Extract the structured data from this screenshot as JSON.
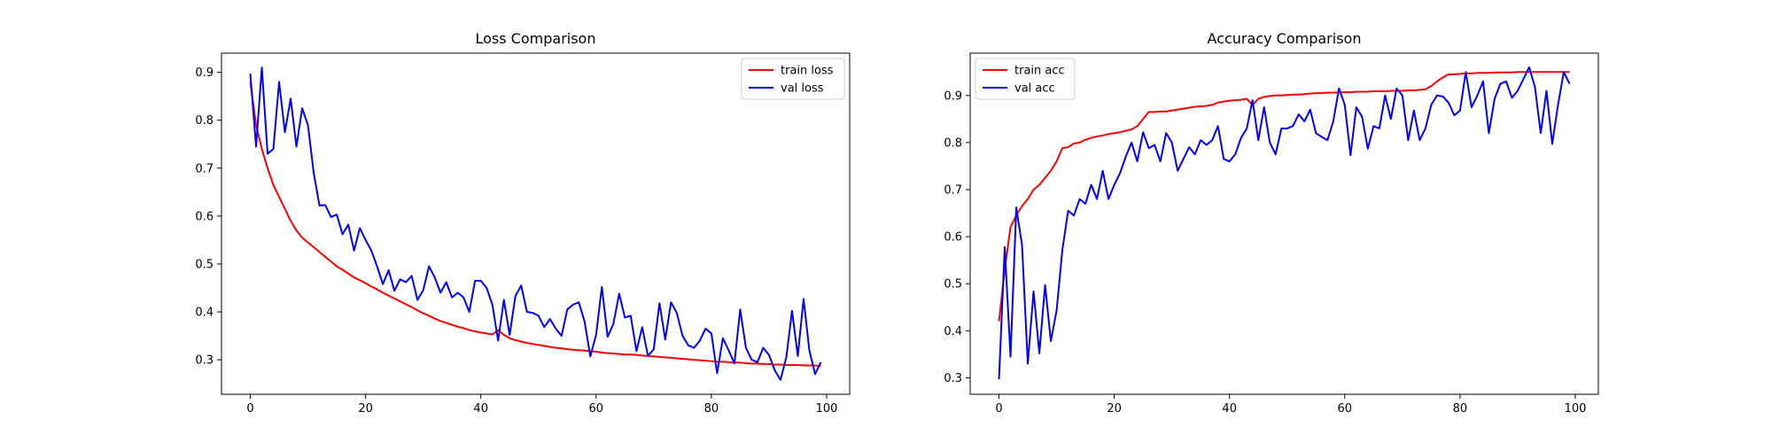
{
  "chart_data": [
    {
      "type": "line",
      "title": "Loss Comparison",
      "xlabel": "",
      "ylabel": "",
      "xlim": [
        -5,
        104
      ],
      "ylim": [
        0.228,
        0.94
      ],
      "x_ticks": [
        0,
        20,
        40,
        60,
        80,
        100
      ],
      "y_ticks": [
        0.3,
        0.4,
        0.5,
        0.6,
        0.7,
        0.8,
        0.9
      ],
      "y_tick_decimals": 1,
      "grid": false,
      "legend_position": "top-right",
      "series": [
        {
          "name": "train loss",
          "color": "#ff0000",
          "x": [
            0,
            1,
            2,
            3,
            4,
            5,
            6,
            7,
            8,
            9,
            10,
            11,
            12,
            13,
            14,
            15,
            16,
            17,
            18,
            19,
            20,
            21,
            22,
            23,
            24,
            25,
            26,
            27,
            28,
            29,
            30,
            31,
            32,
            33,
            34,
            35,
            36,
            37,
            38,
            39,
            40,
            41,
            42,
            43,
            44,
            45,
            46,
            47,
            48,
            49,
            50,
            51,
            52,
            53,
            54,
            55,
            56,
            57,
            58,
            59,
            60,
            61,
            62,
            63,
            64,
            65,
            66,
            67,
            68,
            69,
            70,
            71,
            72,
            73,
            74,
            75,
            76,
            77,
            78,
            79,
            80,
            81,
            82,
            83,
            84,
            85,
            86,
            87,
            88,
            89,
            90,
            91,
            92,
            93,
            94,
            95,
            96,
            97,
            98,
            99
          ],
          "values": [
            0.88,
            0.79,
            0.74,
            0.7,
            0.665,
            0.64,
            0.615,
            0.59,
            0.57,
            0.555,
            0.545,
            0.535,
            0.525,
            0.515,
            0.505,
            0.495,
            0.488,
            0.48,
            0.472,
            0.466,
            0.46,
            0.453,
            0.447,
            0.44,
            0.434,
            0.428,
            0.422,
            0.416,
            0.41,
            0.403,
            0.397,
            0.392,
            0.386,
            0.381,
            0.377,
            0.373,
            0.369,
            0.366,
            0.362,
            0.359,
            0.357,
            0.355,
            0.353,
            0.362,
            0.352,
            0.345,
            0.341,
            0.338,
            0.335,
            0.333,
            0.331,
            0.329,
            0.327,
            0.325,
            0.324,
            0.322,
            0.321,
            0.32,
            0.319,
            0.318,
            0.317,
            0.315,
            0.314,
            0.313,
            0.312,
            0.311,
            0.311,
            0.31,
            0.309,
            0.308,
            0.307,
            0.306,
            0.305,
            0.304,
            0.303,
            0.302,
            0.301,
            0.3,
            0.299,
            0.298,
            0.297,
            0.296,
            0.296,
            0.295,
            0.294,
            0.294,
            0.293,
            0.292,
            0.292,
            0.291,
            0.291,
            0.29,
            0.29,
            0.289,
            0.289,
            0.289,
            0.288,
            0.288,
            0.288,
            0.287
          ]
        },
        {
          "name": "val loss",
          "color": "#0000ff",
          "x": [
            0,
            1,
            2,
            3,
            4,
            5,
            6,
            7,
            8,
            9,
            10,
            11,
            12,
            13,
            14,
            15,
            16,
            17,
            18,
            19,
            20,
            21,
            22,
            23,
            24,
            25,
            26,
            27,
            28,
            29,
            30,
            31,
            32,
            33,
            34,
            35,
            36,
            37,
            38,
            39,
            40,
            41,
            42,
            43,
            44,
            45,
            46,
            47,
            48,
            49,
            50,
            51,
            52,
            53,
            54,
            55,
            56,
            57,
            58,
            59,
            60,
            61,
            62,
            63,
            64,
            65,
            66,
            67,
            68,
            69,
            70,
            71,
            72,
            73,
            74,
            75,
            76,
            77,
            78,
            79,
            80,
            81,
            82,
            83,
            84,
            85,
            86,
            87,
            88,
            89,
            90,
            91,
            92,
            93,
            94,
            95,
            96,
            97,
            98,
            99
          ],
          "values": [
            0.897,
            0.745,
            0.91,
            0.73,
            0.74,
            0.88,
            0.775,
            0.845,
            0.745,
            0.825,
            0.79,
            0.69,
            0.622,
            0.623,
            0.598,
            0.603,
            0.562,
            0.582,
            0.528,
            0.575,
            0.55,
            0.528,
            0.495,
            0.458,
            0.487,
            0.444,
            0.468,
            0.462,
            0.475,
            0.425,
            0.445,
            0.495,
            0.472,
            0.44,
            0.462,
            0.43,
            0.44,
            0.43,
            0.4,
            0.465,
            0.465,
            0.45,
            0.415,
            0.34,
            0.425,
            0.352,
            0.433,
            0.455,
            0.4,
            0.398,
            0.392,
            0.368,
            0.385,
            0.365,
            0.35,
            0.405,
            0.415,
            0.42,
            0.38,
            0.307,
            0.352,
            0.452,
            0.348,
            0.375,
            0.438,
            0.388,
            0.392,
            0.318,
            0.368,
            0.308,
            0.322,
            0.418,
            0.342,
            0.42,
            0.398,
            0.35,
            0.33,
            0.325,
            0.34,
            0.365,
            0.355,
            0.272,
            0.345,
            0.32,
            0.292,
            0.405,
            0.325,
            0.3,
            0.295,
            0.325,
            0.31,
            0.278,
            0.258,
            0.305,
            0.402,
            0.308,
            0.427,
            0.32,
            0.27,
            0.295
          ]
        }
      ]
    },
    {
      "type": "line",
      "title": "Accuracy Comparison",
      "xlabel": "",
      "ylabel": "",
      "xlim": [
        -5,
        104
      ],
      "ylim": [
        0.265,
        0.99
      ],
      "x_ticks": [
        0,
        20,
        40,
        60,
        80,
        100
      ],
      "y_ticks": [
        0.3,
        0.4,
        0.5,
        0.6,
        0.7,
        0.8,
        0.9
      ],
      "y_tick_decimals": 1,
      "grid": false,
      "legend_position": "top-left",
      "series": [
        {
          "name": "train acc",
          "color": "#ff0000",
          "x": [
            0,
            1,
            2,
            3,
            4,
            5,
            6,
            7,
            8,
            9,
            10,
            11,
            12,
            13,
            14,
            15,
            16,
            17,
            18,
            19,
            20,
            21,
            22,
            23,
            24,
            25,
            26,
            27,
            28,
            29,
            30,
            31,
            32,
            33,
            34,
            35,
            36,
            37,
            38,
            39,
            40,
            41,
            42,
            43,
            44,
            45,
            46,
            47,
            48,
            49,
            50,
            51,
            52,
            53,
            54,
            55,
            56,
            57,
            58,
            59,
            60,
            61,
            62,
            63,
            64,
            65,
            66,
            67,
            68,
            69,
            70,
            71,
            72,
            73,
            74,
            75,
            76,
            77,
            78,
            79,
            80,
            81,
            82,
            83,
            84,
            85,
            86,
            87,
            88,
            89,
            90,
            91,
            92,
            93,
            94,
            95,
            96,
            97,
            98,
            99
          ],
          "values": [
            0.42,
            0.53,
            0.62,
            0.645,
            0.665,
            0.68,
            0.7,
            0.71,
            0.725,
            0.74,
            0.76,
            0.788,
            0.79,
            0.798,
            0.8,
            0.806,
            0.81,
            0.813,
            0.815,
            0.818,
            0.82,
            0.822,
            0.825,
            0.828,
            0.835,
            0.85,
            0.865,
            0.865,
            0.866,
            0.866,
            0.868,
            0.87,
            0.872,
            0.874,
            0.876,
            0.877,
            0.878,
            0.88,
            0.885,
            0.887,
            0.889,
            0.89,
            0.891,
            0.893,
            0.88,
            0.893,
            0.897,
            0.899,
            0.9,
            0.9,
            0.901,
            0.902,
            0.902,
            0.903,
            0.904,
            0.905,
            0.905,
            0.906,
            0.906,
            0.907,
            0.907,
            0.907,
            0.908,
            0.908,
            0.908,
            0.909,
            0.909,
            0.909,
            0.91,
            0.91,
            0.91,
            0.911,
            0.911,
            0.912,
            0.913,
            0.92,
            0.93,
            0.938,
            0.945,
            0.945,
            0.946,
            0.947,
            0.947,
            0.948,
            0.948,
            0.948,
            0.949,
            0.949,
            0.949,
            0.949,
            0.95,
            0.95,
            0.95,
            0.95,
            0.95,
            0.95,
            0.95,
            0.95,
            0.95,
            0.95
          ]
        },
        {
          "name": "val acc",
          "color": "#0000ff",
          "x": [
            0,
            1,
            2,
            3,
            4,
            5,
            6,
            7,
            8,
            9,
            10,
            11,
            12,
            13,
            14,
            15,
            16,
            17,
            18,
            19,
            20,
            21,
            22,
            23,
            24,
            25,
            26,
            27,
            28,
            29,
            30,
            31,
            32,
            33,
            34,
            35,
            36,
            37,
            38,
            39,
            40,
            41,
            42,
            43,
            44,
            45,
            46,
            47,
            48,
            49,
            50,
            51,
            52,
            53,
            54,
            55,
            56,
            57,
            58,
            59,
            60,
            61,
            62,
            63,
            64,
            65,
            66,
            67,
            68,
            69,
            70,
            71,
            72,
            73,
            74,
            75,
            76,
            77,
            78,
            79,
            80,
            81,
            82,
            83,
            84,
            85,
            86,
            87,
            88,
            89,
            90,
            91,
            92,
            93,
            94,
            95,
            96,
            97,
            98,
            99
          ],
          "values": [
            0.297,
            0.578,
            0.345,
            0.662,
            0.582,
            0.33,
            0.484,
            0.352,
            0.497,
            0.378,
            0.443,
            0.572,
            0.655,
            0.645,
            0.68,
            0.67,
            0.71,
            0.68,
            0.74,
            0.68,
            0.71,
            0.735,
            0.77,
            0.8,
            0.76,
            0.822,
            0.788,
            0.795,
            0.76,
            0.82,
            0.8,
            0.74,
            0.765,
            0.79,
            0.775,
            0.805,
            0.795,
            0.805,
            0.835,
            0.765,
            0.76,
            0.775,
            0.81,
            0.83,
            0.89,
            0.805,
            0.875,
            0.8,
            0.775,
            0.83,
            0.83,
            0.835,
            0.86,
            0.845,
            0.87,
            0.82,
            0.812,
            0.805,
            0.845,
            0.915,
            0.88,
            0.773,
            0.875,
            0.855,
            0.787,
            0.835,
            0.83,
            0.9,
            0.85,
            0.915,
            0.9,
            0.805,
            0.868,
            0.805,
            0.83,
            0.88,
            0.9,
            0.898,
            0.885,
            0.858,
            0.868,
            0.95,
            0.875,
            0.9,
            0.93,
            0.82,
            0.893,
            0.925,
            0.93,
            0.895,
            0.91,
            0.935,
            0.96,
            0.918,
            0.82,
            0.91,
            0.797,
            0.88,
            0.95,
            0.925
          ]
        }
      ]
    }
  ]
}
